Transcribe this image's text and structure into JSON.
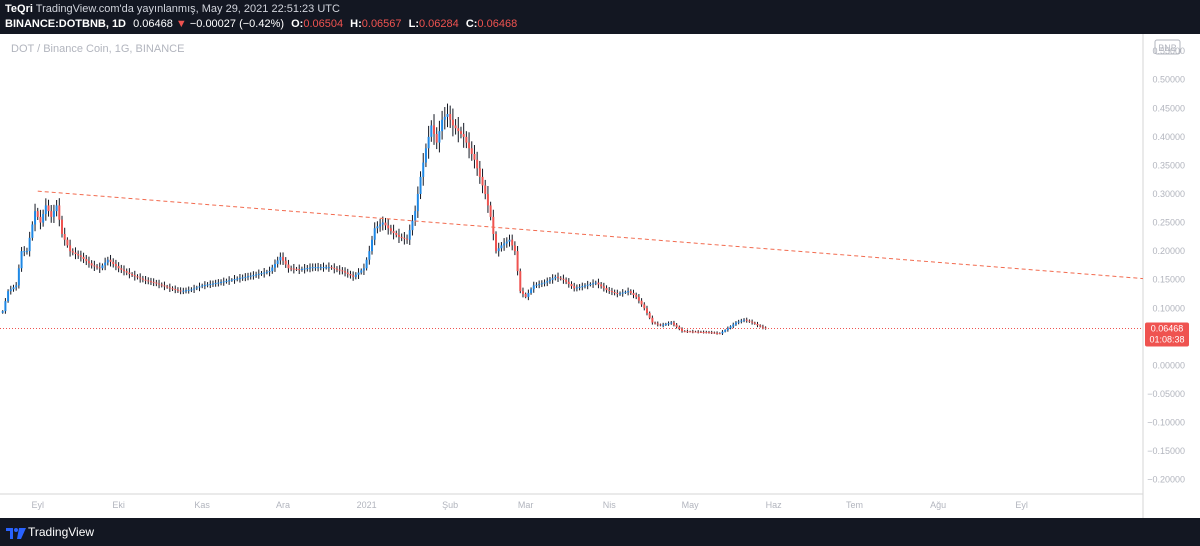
{
  "header": {
    "author": "TeQri",
    "published_text": "TradingView.com'da yayınlanmış, May 29, 2021 22:51:23 UTC",
    "symbol": "BINANCE:DOTBNB, 1D",
    "last_price": "0.06468",
    "change_arrow": "▼",
    "change": "−0.00027 (−0.42%)",
    "open_label": "O:",
    "open": "0.06504",
    "high_label": "H:",
    "high": "0.06567",
    "low_label": "L:",
    "low": "0.06284",
    "close_label": "C:",
    "close": "0.06468"
  },
  "footer": {
    "brand": "TradingView"
  },
  "colors": {
    "up": "#26a69a",
    "down": "#ef5350",
    "candle_body": "#1e88e5",
    "candle_wick": "#131722",
    "trendline": "#f26b4f",
    "price_line": "#ef5350",
    "price_label_bg": "#ef5350"
  },
  "chart_data": {
    "type": "candlestick",
    "title": "DOT / Binance Coin, 1G, BINANCE",
    "currency_badge": "BNB",
    "price_label": "0.06468",
    "countdown": "01:08:38",
    "ylim": [
      -0.225,
      0.58
    ],
    "y_ticks": [
      "0.55000",
      "0.50000",
      "0.45000",
      "0.40000",
      "0.35000",
      "0.30000",
      "0.25000",
      "0.20000",
      "0.15000",
      "0.10000",
      "0.05000",
      "0.00000",
      "−0.05000",
      "−0.10000",
      "−0.15000",
      "−0.20000"
    ],
    "y_tick_values": [
      0.55,
      0.5,
      0.45,
      0.4,
      0.35,
      0.3,
      0.25,
      0.2,
      0.15,
      0.1,
      0.05,
      0.0,
      -0.05,
      -0.1,
      -0.15,
      -0.2
    ],
    "x_start": "2020-08-18",
    "x_end": "2021-10-16",
    "x_ticks": [
      {
        "label": "Eyl",
        "date": "2020-09-01"
      },
      {
        "label": "Eki",
        "date": "2020-10-01"
      },
      {
        "label": "Kas",
        "date": "2020-11-01"
      },
      {
        "label": "Ara",
        "date": "2020-12-01"
      },
      {
        "label": "2021",
        "date": "2021-01-01"
      },
      {
        "label": "Şub",
        "date": "2021-02-01"
      },
      {
        "label": "Mar",
        "date": "2021-03-01"
      },
      {
        "label": "Nis",
        "date": "2021-04-01"
      },
      {
        "label": "May",
        "date": "2021-05-01"
      },
      {
        "label": "Haz",
        "date": "2021-06-01"
      },
      {
        "label": "Tem",
        "date": "2021-07-01"
      },
      {
        "label": "Ağu",
        "date": "2021-08-01"
      },
      {
        "label": "Eyl",
        "date": "2021-09-01"
      }
    ],
    "close_series": [
      {
        "date": "2020-08-19",
        "close": 0.095
      },
      {
        "date": "2020-08-21",
        "close": 0.13
      },
      {
        "date": "2020-08-24",
        "close": 0.14
      },
      {
        "date": "2020-08-26",
        "close": 0.2
      },
      {
        "date": "2020-08-28",
        "close": 0.2
      },
      {
        "date": "2020-08-31",
        "close": 0.27
      },
      {
        "date": "2020-09-02",
        "close": 0.25
      },
      {
        "date": "2020-09-04",
        "close": 0.28
      },
      {
        "date": "2020-09-06",
        "close": 0.26
      },
      {
        "date": "2020-09-08",
        "close": 0.28
      },
      {
        "date": "2020-09-10",
        "close": 0.23
      },
      {
        "date": "2020-09-13",
        "close": 0.2
      },
      {
        "date": "2020-09-17",
        "close": 0.19
      },
      {
        "date": "2020-09-21",
        "close": 0.175
      },
      {
        "date": "2020-09-24",
        "close": 0.17
      },
      {
        "date": "2020-09-27",
        "close": 0.185
      },
      {
        "date": "2020-10-01",
        "close": 0.17
      },
      {
        "date": "2020-10-05",
        "close": 0.16
      },
      {
        "date": "2020-10-10",
        "close": 0.15
      },
      {
        "date": "2020-10-14",
        "close": 0.145
      },
      {
        "date": "2020-10-20",
        "close": 0.135
      },
      {
        "date": "2020-10-24",
        "close": 0.13
      },
      {
        "date": "2020-10-28",
        "close": 0.133
      },
      {
        "date": "2020-11-01",
        "close": 0.14
      },
      {
        "date": "2020-11-07",
        "close": 0.145
      },
      {
        "date": "2020-11-14",
        "close": 0.152
      },
      {
        "date": "2020-11-20",
        "close": 0.158
      },
      {
        "date": "2020-11-26",
        "close": 0.165
      },
      {
        "date": "2020-11-30",
        "close": 0.19
      },
      {
        "date": "2020-12-03",
        "close": 0.17
      },
      {
        "date": "2020-12-07",
        "close": 0.168
      },
      {
        "date": "2020-12-12",
        "close": 0.172
      },
      {
        "date": "2020-12-18",
        "close": 0.172
      },
      {
        "date": "2020-12-23",
        "close": 0.165
      },
      {
        "date": "2020-12-27",
        "close": 0.155
      },
      {
        "date": "2020-12-31",
        "close": 0.17
      },
      {
        "date": "2021-01-02",
        "close": 0.2
      },
      {
        "date": "2021-01-04",
        "close": 0.24
      },
      {
        "date": "2021-01-07",
        "close": 0.25
      },
      {
        "date": "2021-01-10",
        "close": 0.235
      },
      {
        "date": "2021-01-13",
        "close": 0.225
      },
      {
        "date": "2021-01-16",
        "close": 0.22
      },
      {
        "date": "2021-01-19",
        "close": 0.27
      },
      {
        "date": "2021-01-21",
        "close": 0.33
      },
      {
        "date": "2021-01-23",
        "close": 0.38
      },
      {
        "date": "2021-01-25",
        "close": 0.42
      },
      {
        "date": "2021-01-27",
        "close": 0.39
      },
      {
        "date": "2021-01-29",
        "close": 0.43
      },
      {
        "date": "2021-01-31",
        "close": 0.44
      },
      {
        "date": "2021-02-02",
        "close": 0.42
      },
      {
        "date": "2021-02-04",
        "close": 0.41
      },
      {
        "date": "2021-02-06",
        "close": 0.4
      },
      {
        "date": "2021-02-08",
        "close": 0.38
      },
      {
        "date": "2021-02-10",
        "close": 0.36
      },
      {
        "date": "2021-02-12",
        "close": 0.33
      },
      {
        "date": "2021-02-14",
        "close": 0.3
      },
      {
        "date": "2021-02-16",
        "close": 0.26
      },
      {
        "date": "2021-02-18",
        "close": 0.2
      },
      {
        "date": "2021-02-20",
        "close": 0.21
      },
      {
        "date": "2021-02-23",
        "close": 0.22
      },
      {
        "date": "2021-02-25",
        "close": 0.2
      },
      {
        "date": "2021-02-27",
        "close": 0.13
      },
      {
        "date": "2021-03-01",
        "close": 0.12
      },
      {
        "date": "2021-03-04",
        "close": 0.14
      },
      {
        "date": "2021-03-08",
        "close": 0.145
      },
      {
        "date": "2021-03-12",
        "close": 0.155
      },
      {
        "date": "2021-03-15",
        "close": 0.15
      },
      {
        "date": "2021-03-19",
        "close": 0.135
      },
      {
        "date": "2021-03-23",
        "close": 0.14
      },
      {
        "date": "2021-03-27",
        "close": 0.145
      },
      {
        "date": "2021-03-31",
        "close": 0.132
      },
      {
        "date": "2021-04-04",
        "close": 0.125
      },
      {
        "date": "2021-04-08",
        "close": 0.13
      },
      {
        "date": "2021-04-11",
        "close": 0.12
      },
      {
        "date": "2021-04-14",
        "close": 0.1
      },
      {
        "date": "2021-04-17",
        "close": 0.075
      },
      {
        "date": "2021-04-20",
        "close": 0.07
      },
      {
        "date": "2021-04-24",
        "close": 0.075
      },
      {
        "date": "2021-04-28",
        "close": 0.06
      },
      {
        "date": "2021-05-03",
        "close": 0.059
      },
      {
        "date": "2021-05-08",
        "close": 0.058
      },
      {
        "date": "2021-05-12",
        "close": 0.056
      },
      {
        "date": "2021-05-15",
        "close": 0.065
      },
      {
        "date": "2021-05-18",
        "close": 0.075
      },
      {
        "date": "2021-05-21",
        "close": 0.08
      },
      {
        "date": "2021-05-24",
        "close": 0.075
      },
      {
        "date": "2021-05-27",
        "close": 0.068
      },
      {
        "date": "2021-05-29",
        "close": 0.06468
      }
    ],
    "trendline": {
      "start": {
        "date": "2020-09-01",
        "price": 0.305
      },
      "end": {
        "date": "2021-10-16",
        "price": 0.152
      }
    },
    "current_price_line": 0.06468
  }
}
